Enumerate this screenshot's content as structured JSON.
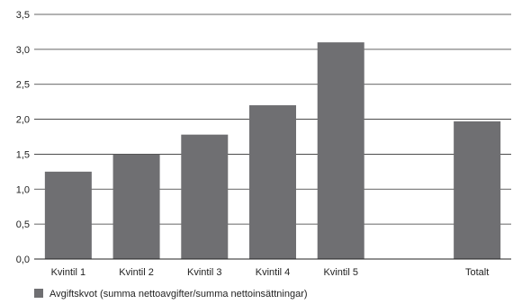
{
  "chart_data": {
    "type": "bar",
    "categories": [
      "Kvintil 1",
      "Kvintil 2",
      "Kvintil 3",
      "Kvintil 4",
      "Kvintil 5",
      "",
      "Totalt"
    ],
    "series": [
      {
        "name": "Avgiftskvot (summa nettoavgifter/summa nettoinsättningar)",
        "values": [
          1.25,
          1.5,
          1.78,
          2.2,
          3.1,
          null,
          1.97
        ],
        "color": "#6f6f72"
      }
    ],
    "y_ticks": [
      "0,0",
      "0,5",
      "1,0",
      "1,5",
      "2,0",
      "2,5",
      "3,0",
      "3,5"
    ],
    "ylim": [
      0,
      3.5
    ],
    "grid": true,
    "legend_position": "bottom-left"
  }
}
